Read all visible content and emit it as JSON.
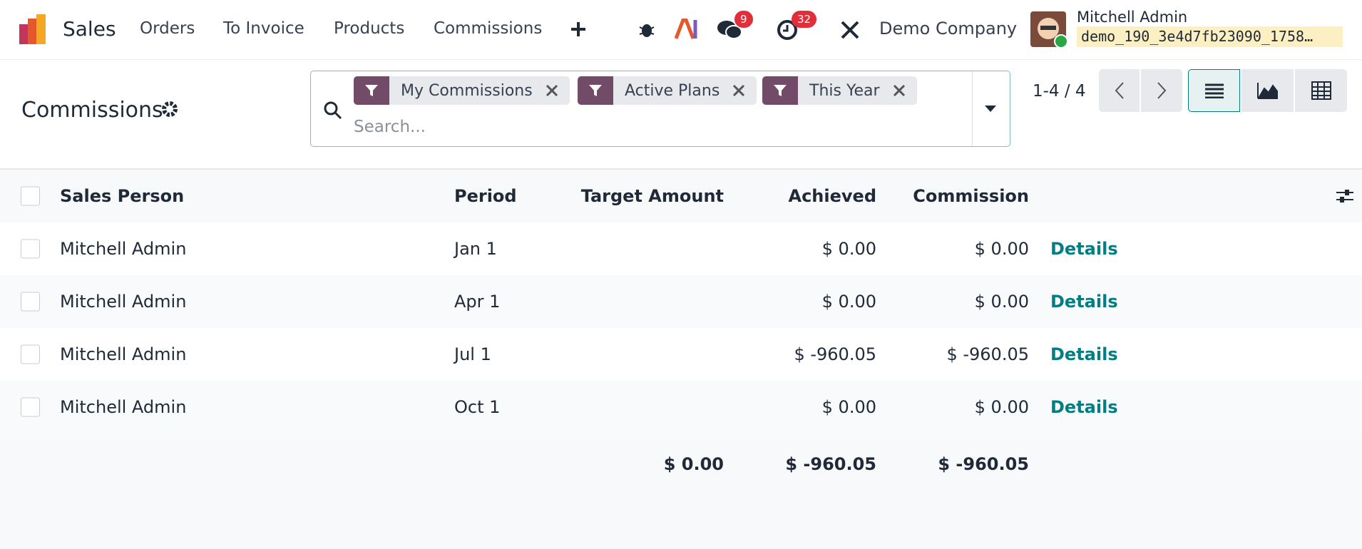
{
  "navbar": {
    "app": "Sales",
    "menu": [
      "Orders",
      "To Invoice",
      "Products",
      "Commissions"
    ],
    "messages_badge": "9",
    "activities_badge": "32",
    "company": "Demo Company",
    "user": "Mitchell Admin",
    "database": "demo_190_3e4d7fb23090_1758…"
  },
  "control_panel": {
    "title": "Commissions",
    "facets": [
      "My Commissions",
      "Active Plans",
      "This Year"
    ],
    "search_placeholder": "Search...",
    "pager": "1-4 / 4"
  },
  "table": {
    "headers": [
      "Sales Person",
      "Period",
      "Target Amount",
      "Achieved",
      "Commission"
    ],
    "rows": [
      {
        "sales_person": "Mitchell Admin",
        "period": "Jan 1",
        "achieved": "$ 0.00",
        "commission": "$ 0.00",
        "action": "Details"
      },
      {
        "sales_person": "Mitchell Admin",
        "period": "Apr 1",
        "achieved": "$ 0.00",
        "commission": "$ 0.00",
        "action": "Details"
      },
      {
        "sales_person": "Mitchell Admin",
        "period": "Jul 1",
        "achieved": "$ -960.05",
        "commission": "$ -960.05",
        "action": "Details"
      },
      {
        "sales_person": "Mitchell Admin",
        "period": "Oct 1",
        "achieved": "$ 0.00",
        "commission": "$ 0.00",
        "action": "Details"
      }
    ],
    "totals": {
      "target_amount": "$ 0.00",
      "achieved": "$ -960.05",
      "commission": "$ -960.05"
    }
  }
}
